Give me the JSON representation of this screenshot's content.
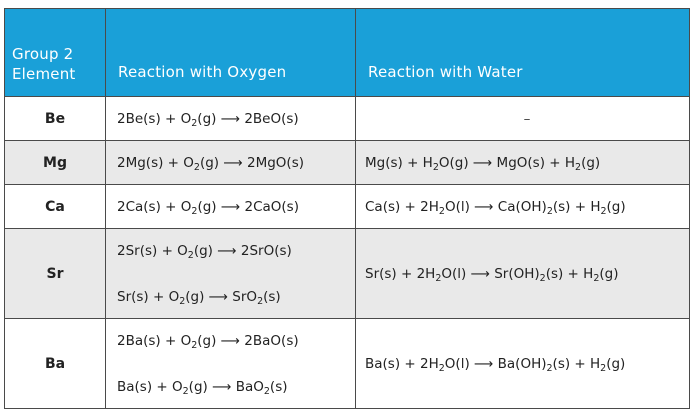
{
  "table": {
    "headers": {
      "element": [
        "Group 2",
        "Element"
      ],
      "oxygen": "Reaction with Oxygen",
      "water": "Reaction with Water"
    },
    "rows": [
      {
        "element": "Be",
        "oxygen": [
          [
            [
              "t",
              "2Be(s) + O"
            ],
            [
              "s",
              "2"
            ],
            [
              "t",
              "(g)  ⟶  2BeO(s)"
            ]
          ]
        ],
        "water": [
          [
            [
              "t",
              "–"
            ]
          ]
        ]
      },
      {
        "element": "Mg",
        "oxygen": [
          [
            [
              "t",
              "2Mg(s) + O"
            ],
            [
              "s",
              "2"
            ],
            [
              "t",
              "(g)  ⟶  2MgO(s)"
            ]
          ]
        ],
        "water": [
          [
            [
              "t",
              "Mg(s) + H"
            ],
            [
              "s",
              "2"
            ],
            [
              "t",
              "O(g)  ⟶  MgO(s) + H"
            ],
            [
              "s",
              "2"
            ],
            [
              "t",
              "(g)"
            ]
          ]
        ]
      },
      {
        "element": "Ca",
        "oxygen": [
          [
            [
              "t",
              "2Ca(s) + O"
            ],
            [
              "s",
              "2"
            ],
            [
              "t",
              "(g)  ⟶  2CaO(s)"
            ]
          ]
        ],
        "water": [
          [
            [
              "t",
              "Ca(s) + 2H"
            ],
            [
              "s",
              "2"
            ],
            [
              "t",
              "O(l) ⟶ Ca(OH)"
            ],
            [
              "s",
              "2"
            ],
            [
              "t",
              "(s) + H"
            ],
            [
              "s",
              "2"
            ],
            [
              "t",
              "(g)"
            ]
          ]
        ]
      },
      {
        "element": "Sr",
        "oxygen": [
          [
            [
              "t",
              "2Sr(s) + O"
            ],
            [
              "s",
              "2"
            ],
            [
              "t",
              "(g)  ⟶  2SrO(s)"
            ]
          ],
          [
            [
              "t",
              "Sr(s) + O"
            ],
            [
              "s",
              "2"
            ],
            [
              "t",
              "(g)   ⟶   SrO"
            ],
            [
              "s",
              "2"
            ],
            [
              "t",
              "(s)"
            ]
          ]
        ],
        "water": [
          [
            [
              "t",
              "Sr(s) + 2H"
            ],
            [
              "s",
              "2"
            ],
            [
              "t",
              "O(l)  ⟶  Sr(OH)"
            ],
            [
              "s",
              "2"
            ],
            [
              "t",
              "(s) + H"
            ],
            [
              "s",
              "2"
            ],
            [
              "t",
              "(g)"
            ]
          ]
        ]
      },
      {
        "element": "Ba",
        "oxygen": [
          [
            [
              "t",
              "2Ba(s) + O"
            ],
            [
              "s",
              "2"
            ],
            [
              "t",
              "(g)  ⟶ 2BaO(s)"
            ]
          ],
          [
            [
              "t",
              "Ba(s) + O"
            ],
            [
              "s",
              "2"
            ],
            [
              "t",
              "(g)   ⟶   BaO"
            ],
            [
              "s",
              "2"
            ],
            [
              "t",
              "(s)"
            ]
          ]
        ],
        "water": [
          [
            [
              "t",
              "Ba(s) + 2H"
            ],
            [
              "s",
              "2"
            ],
            [
              "t",
              "O(l)  ⟶  Ba(OH)"
            ],
            [
              "s",
              "2"
            ],
            [
              "t",
              "(s) + H"
            ],
            [
              "s",
              "2"
            ],
            [
              "t",
              "(g)"
            ]
          ]
        ]
      }
    ]
  },
  "colors": {
    "header_bg": "#1aa0d8",
    "header_text": "#ffffff",
    "alt_row_bg": "#e9e9e9",
    "border": "#4a4a4a"
  }
}
